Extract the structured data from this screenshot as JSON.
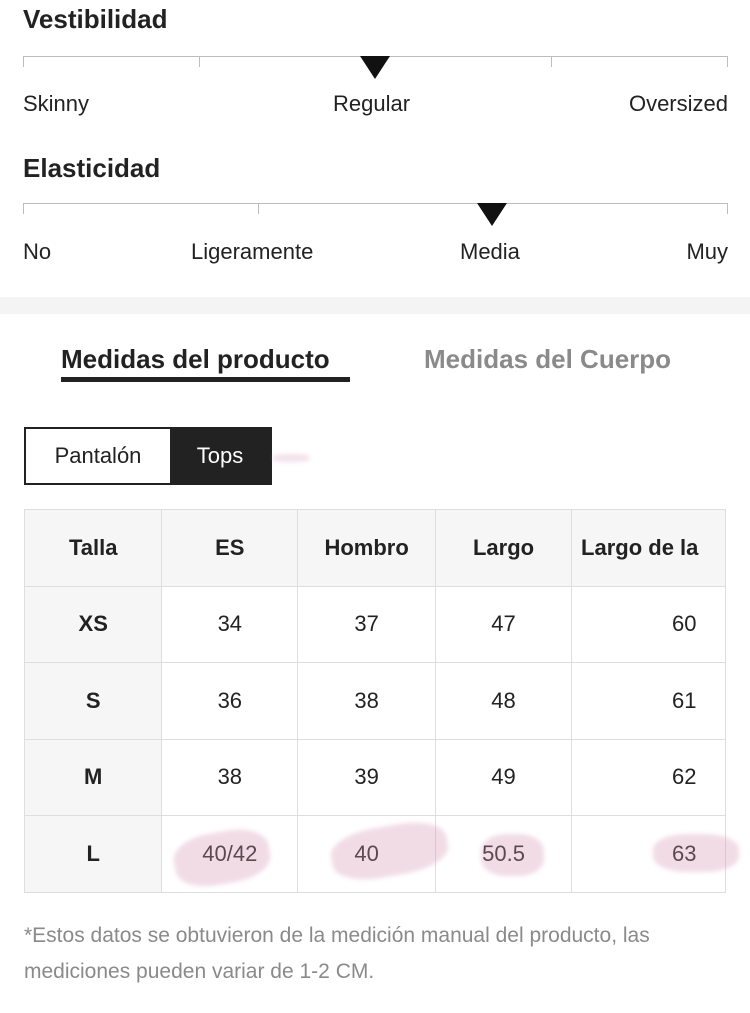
{
  "fit": {
    "title": "Vestibilidad",
    "labels": [
      "Skinny",
      "Regular",
      "Oversized"
    ],
    "selected": "Regular"
  },
  "elasticity": {
    "title": "Elasticidad",
    "labels": [
      "No",
      "Ligeramente",
      "Media",
      "Muy"
    ],
    "selected": "Media"
  },
  "tabs": [
    {
      "label": "Medidas del producto",
      "active": true
    },
    {
      "label": "Medidas del Cuerpo",
      "active": false
    }
  ],
  "category_toggle": {
    "options": [
      "Pantalón",
      "Tops"
    ],
    "selected": "Tops"
  },
  "size_table": {
    "headers": [
      "Talla",
      "ES",
      "Hombro",
      "Largo",
      "Largo de la"
    ],
    "rows": [
      [
        "XS",
        "34",
        "37",
        "47",
        "60"
      ],
      [
        "S",
        "36",
        "38",
        "48",
        "61"
      ],
      [
        "M",
        "38",
        "39",
        "49",
        "62"
      ],
      [
        "L",
        "40/42",
        "40",
        "50.5",
        "63"
      ]
    ]
  },
  "note": "*Estos datos se obtuvieron de la medición manual del producto, las mediciones pueden variar de 1-2 CM.",
  "colors": {
    "text": "#222222",
    "muted": "#8a8a8a",
    "header_bg": "#f6f6f6",
    "highlight": "#d696b2"
  }
}
